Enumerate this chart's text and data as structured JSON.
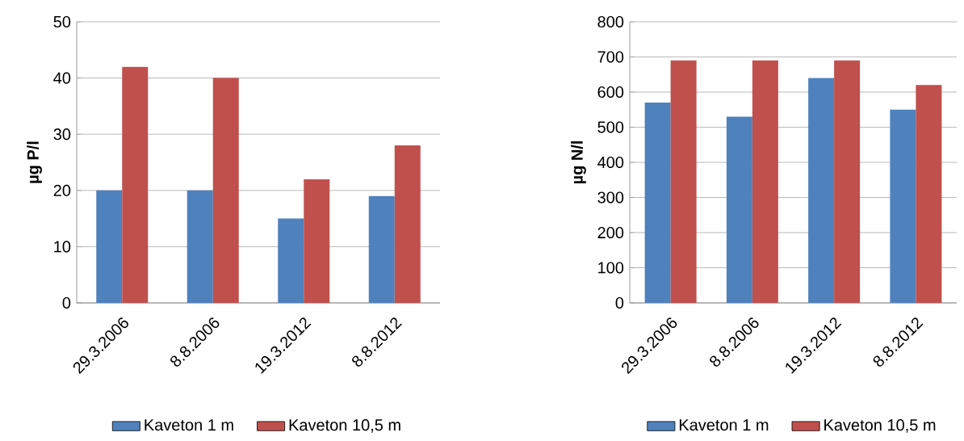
{
  "chart_data": [
    {
      "type": "bar",
      "categories": [
        "29.3.2006",
        "8.8.2006",
        "19.3.2012",
        "8.8.2012"
      ],
      "ylabel": "µg P/l",
      "ylim": [
        0,
        50
      ],
      "yticks": [
        0,
        10,
        20,
        30,
        40,
        50
      ],
      "grid": "y",
      "legend": "bottom",
      "series": [
        {
          "name": "Kaveton 1 m",
          "color": "#4f81bd",
          "values": [
            20,
            20,
            15,
            19
          ]
        },
        {
          "name": "Kaveton 10,5 m",
          "color": "#c0504d",
          "values": [
            42,
            40,
            22,
            28
          ]
        }
      ]
    },
    {
      "type": "bar",
      "categories": [
        "29.3.2006",
        "8.8.2006",
        "19.3.2012",
        "8.8.2012"
      ],
      "ylabel": "µg N/l",
      "ylim": [
        0,
        800
      ],
      "yticks": [
        0,
        100,
        200,
        300,
        400,
        500,
        600,
        700,
        800
      ],
      "grid": "y",
      "legend": "bottom",
      "series": [
        {
          "name": "Kaveton 1 m",
          "color": "#4f81bd",
          "values": [
            570,
            530,
            640,
            550
          ]
        },
        {
          "name": "Kaveton 10,5 m",
          "color": "#c0504d",
          "values": [
            690,
            690,
            690,
            620
          ]
        }
      ]
    }
  ]
}
